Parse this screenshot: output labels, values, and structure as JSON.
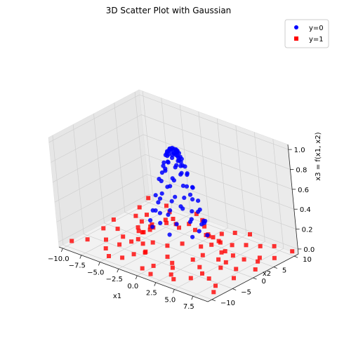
{
  "chart_data": {
    "type": "scatter",
    "projection": "3d",
    "title": "3D Scatter Plot with Gaussian",
    "xlabel": "x1",
    "ylabel": "x2",
    "zlabel": "x3 = f(x1, x2)",
    "xlim": [
      -10.5,
      9.5
    ],
    "ylim": [
      -11,
      11
    ],
    "zlim": [
      -0.05,
      1.05
    ],
    "xticks": [
      "−10.0",
      "−7.5",
      "−5.0",
      "−2.5",
      "0.0",
      "2.5",
      "5.0",
      "7.5"
    ],
    "yticks": [
      "−10",
      "−5",
      "0",
      "5",
      "10"
    ],
    "zticks": [
      "0.0",
      "0.2",
      "0.4",
      "0.6",
      "0.8",
      "1.0"
    ],
    "grid": true,
    "legend": {
      "position": "top-right",
      "entries": [
        "y=0",
        "y=1"
      ]
    },
    "series": [
      {
        "name": "y=0",
        "color": "#0000ff",
        "marker": "circle",
        "points": [
          [
            -0.1,
            0.1,
            0.99
          ],
          [
            0.2,
            0.0,
            0.99
          ],
          [
            0.3,
            0.3,
            0.98
          ],
          [
            -0.3,
            -0.2,
            0.98
          ],
          [
            0.0,
            -0.4,
            0.97
          ],
          [
            0.5,
            0.1,
            0.97
          ],
          [
            -0.5,
            0.2,
            0.97
          ],
          [
            0.1,
            0.5,
            0.97
          ],
          [
            0.4,
            -0.4,
            0.96
          ],
          [
            -0.4,
            0.4,
            0.96
          ],
          [
            0.6,
            0.4,
            0.95
          ],
          [
            -0.6,
            -0.3,
            0.95
          ],
          [
            0.2,
            0.7,
            0.94
          ],
          [
            -0.2,
            -0.7,
            0.94
          ],
          [
            0.7,
            -0.2,
            0.94
          ],
          [
            -0.7,
            0.1,
            0.94
          ],
          [
            0.8,
            0.3,
            0.92
          ],
          [
            -0.3,
            0.8,
            0.92
          ],
          [
            0.3,
            -0.8,
            0.92
          ],
          [
            -0.8,
            -0.4,
            0.91
          ],
          [
            0.9,
            -0.5,
            0.9
          ],
          [
            -0.6,
            0.8,
            0.89
          ],
          [
            0.6,
            0.9,
            0.88
          ],
          [
            -1.0,
            0.3,
            0.88
          ],
          [
            0.1,
            1.0,
            0.88
          ],
          [
            1.0,
            0.0,
            0.88
          ],
          [
            -0.1,
            -1.1,
            0.87
          ],
          [
            0.8,
            -0.8,
            0.86
          ],
          [
            -0.9,
            -0.8,
            0.84
          ],
          [
            1.2,
            0.5,
            0.83
          ],
          [
            -1.2,
            0.6,
            0.81
          ],
          [
            0.4,
            1.3,
            0.8
          ],
          [
            -0.5,
            -1.3,
            0.8
          ],
          [
            1.3,
            -0.6,
            0.79
          ],
          [
            -1.4,
            -0.2,
            0.78
          ],
          [
            0.0,
            1.5,
            0.78
          ],
          [
            1.5,
            0.3,
            0.76
          ],
          [
            -0.7,
            1.4,
            0.75
          ],
          [
            1.0,
            1.2,
            0.74
          ],
          [
            -1.1,
            -1.1,
            0.74
          ],
          [
            0.7,
            -1.5,
            0.72
          ],
          [
            -1.6,
            0.5,
            0.71
          ],
          [
            1.6,
            -1.0,
            0.68
          ],
          [
            -0.3,
            1.8,
            0.68
          ],
          [
            0.3,
            -1.9,
            0.66
          ],
          [
            -1.8,
            -0.8,
            0.65
          ],
          [
            1.9,
            0.6,
            0.64
          ],
          [
            -1.3,
            1.5,
            0.62
          ],
          [
            1.4,
            1.5,
            0.6
          ],
          [
            -2.1,
            0.2,
            0.6
          ],
          [
            2.1,
            -0.4,
            0.59
          ],
          [
            0.9,
            -2.0,
            0.57
          ],
          [
            -0.8,
            -2.1,
            0.56
          ],
          [
            0.1,
            2.3,
            0.56
          ],
          [
            -2.0,
            1.3,
            0.52
          ],
          [
            2.2,
            1.1,
            0.5
          ],
          [
            -2.3,
            -1.1,
            0.48
          ],
          [
            1.7,
            -1.8,
            0.47
          ],
          [
            -1.5,
            -2.0,
            0.45
          ],
          [
            0.6,
            2.5,
            0.44
          ],
          [
            -0.6,
            2.6,
            0.42
          ],
          [
            2.6,
            0.2,
            0.42
          ],
          [
            -2.7,
            0.5,
            0.4
          ],
          [
            0.2,
            -2.8,
            0.39
          ],
          [
            1.8,
            2.0,
            0.38
          ],
          [
            -2.0,
            2.0,
            0.36
          ],
          [
            2.4,
            -1.5,
            0.35
          ],
          [
            -2.6,
            -1.6,
            0.33
          ],
          [
            1.2,
            -2.7,
            0.32
          ],
          [
            -1.3,
            2.8,
            0.31
          ],
          [
            2.9,
            0.9,
            0.3
          ],
          [
            -3.0,
            -0.3,
            0.29
          ],
          [
            0.0,
            3.1,
            0.29
          ],
          [
            -0.9,
            -3.0,
            0.28
          ],
          [
            2.2,
            2.3,
            0.27
          ],
          [
            3.1,
            -0.8,
            0.26
          ],
          [
            -2.5,
            2.2,
            0.25
          ],
          [
            1.6,
            2.9,
            0.24
          ],
          [
            -3.2,
            1.0,
            0.23
          ],
          [
            2.8,
            -2.0,
            0.22
          ],
          [
            0.5,
            -3.4,
            0.21
          ],
          [
            -2.2,
            -2.7,
            0.2
          ],
          [
            3.4,
            0.5,
            0.2
          ],
          [
            -3.5,
            -0.9,
            0.19
          ],
          [
            -0.4,
            3.5,
            0.19
          ],
          [
            1.0,
            3.4,
            0.18
          ],
          [
            0.3,
            0.6,
            0.96
          ],
          [
            -0.2,
            0.9,
            0.9
          ],
          [
            0.9,
            -0.2,
            0.9
          ],
          [
            -0.8,
            -0.1,
            0.92
          ]
        ]
      },
      {
        "name": "y=1",
        "color": "#ff0000",
        "marker": "square",
        "points": [
          [
            2.8,
            1.2,
            0.17
          ],
          [
            -3.0,
            1.8,
            0.15
          ],
          [
            1.9,
            -3.0,
            0.15
          ],
          [
            -2.9,
            -2.2,
            0.14
          ],
          [
            3.5,
            -1.4,
            0.13
          ],
          [
            -1.0,
            3.8,
            0.12
          ],
          [
            3.9,
            0.4,
            0.12
          ],
          [
            -4.0,
            0.2,
            0.11
          ],
          [
            0.4,
            -4.0,
            0.11
          ],
          [
            2.6,
            3.1,
            0.1
          ],
          [
            -3.4,
            2.6,
            0.09
          ],
          [
            -1.7,
            -3.8,
            0.08
          ],
          [
            4.0,
            -2.0,
            0.07
          ],
          [
            -4.3,
            -1.4,
            0.06
          ],
          [
            1.3,
            4.3,
            0.05
          ],
          [
            -0.7,
            4.6,
            0.05
          ],
          [
            4.6,
            1.4,
            0.04
          ],
          [
            3.4,
            -3.4,
            0.04
          ],
          [
            -4.7,
            1.6,
            0.03
          ],
          [
            -3.1,
            -3.8,
            0.03
          ],
          [
            0.8,
            -4.9,
            0.03
          ],
          [
            -5.0,
            -0.5,
            0.02
          ],
          [
            5.1,
            -0.3,
            0.02
          ],
          [
            2.7,
            4.5,
            0.02
          ],
          [
            -2.8,
            4.4,
            0.02
          ],
          [
            -5.4,
            2.1,
            0.01
          ],
          [
            5.5,
            2.5,
            0.01
          ],
          [
            1.8,
            -5.6,
            0.01
          ],
          [
            -1.9,
            -5.5,
            0.01
          ],
          [
            4.6,
            -4.0,
            0.01
          ],
          [
            -4.8,
            -3.6,
            0.0
          ],
          [
            0.2,
            6.0,
            0.0
          ],
          [
            6.2,
            -1.8,
            0.0
          ],
          [
            -6.4,
            0.9,
            0.0
          ],
          [
            3.7,
            5.5,
            0.0
          ],
          [
            -3.9,
            5.6,
            0.0
          ],
          [
            -6.2,
            -3.1,
            0.0
          ],
          [
            2.4,
            -6.6,
            0.0
          ],
          [
            -2.7,
            -6.8,
            0.0
          ],
          [
            6.8,
            2.8,
            0.0
          ],
          [
            -7.0,
            2.9,
            0.0
          ],
          [
            5.6,
            -5.2,
            0.0
          ],
          [
            -5.3,
            -5.6,
            0.0
          ],
          [
            1.2,
            7.5,
            0.0
          ],
          [
            7.6,
            -0.6,
            0.0
          ],
          [
            -7.8,
            -1.5,
            0.0
          ],
          [
            -1.3,
            7.8,
            0.0
          ],
          [
            0.6,
            -8.0,
            0.0
          ],
          [
            4.8,
            6.9,
            0.0
          ],
          [
            -4.9,
            6.7,
            0.0
          ],
          [
            8.2,
            3.6,
            0.0
          ],
          [
            -8.3,
            3.8,
            0.0
          ],
          [
            6.9,
            -5.9,
            0.0
          ],
          [
            -7.1,
            -5.6,
            0.0
          ],
          [
            3.3,
            -8.6,
            0.0
          ],
          [
            -3.1,
            -8.9,
            0.0
          ],
          [
            8.8,
            -3.3,
            0.0
          ],
          [
            -9.0,
            -2.8,
            0.0
          ],
          [
            2.1,
            9.1,
            0.0
          ],
          [
            -2.4,
            9.3,
            0.0
          ],
          [
            9.2,
            1.2,
            0.0
          ],
          [
            -9.5,
            0.6,
            0.0
          ],
          [
            6.1,
            8.0,
            0.0
          ],
          [
            -6.2,
            8.2,
            0.0
          ],
          [
            0.1,
            -9.8,
            0.0
          ],
          [
            8.5,
            -7.2,
            0.0
          ],
          [
            -8.6,
            -7.4,
            0.0
          ],
          [
            9.0,
            6.2,
            0.0
          ],
          [
            -9.3,
            6.5,
            0.0
          ],
          [
            4.2,
            -9.6,
            0.0
          ],
          [
            -4.4,
            -9.8,
            0.0
          ],
          [
            7.2,
            9.4,
            0.0
          ],
          [
            -7.4,
            9.6,
            0.0
          ],
          [
            9.3,
            -9.1,
            0.0
          ],
          [
            -9.6,
            -9.4,
            0.0
          ],
          [
            3.5,
            10.2,
            0.0
          ],
          [
            -3.8,
            10.4,
            0.0
          ],
          [
            9.4,
            9.8,
            0.0
          ],
          [
            -10.0,
            9.9,
            0.0
          ],
          [
            1.6,
            -10.5,
            0.0
          ],
          [
            5.4,
            -7.6,
            0.0
          ],
          [
            -5.8,
            -8.0,
            0.0
          ],
          [
            7.8,
            4.8,
            0.0
          ],
          [
            -7.6,
            5.2,
            0.0
          ],
          [
            4.4,
            2.6,
            0.02
          ],
          [
            -4.3,
            -2.8,
            0.02
          ],
          [
            2.2,
            5.0,
            0.01
          ],
          [
            -2.0,
            -5.2,
            0.01
          ],
          [
            5.8,
            0.2,
            0.0
          ],
          [
            -5.8,
            0.0,
            0.0
          ]
        ]
      }
    ]
  },
  "colors": {
    "background": "#ffffff",
    "pane": "#f2f2f2",
    "grid": "#cfcfcf",
    "axis": "#222222"
  }
}
